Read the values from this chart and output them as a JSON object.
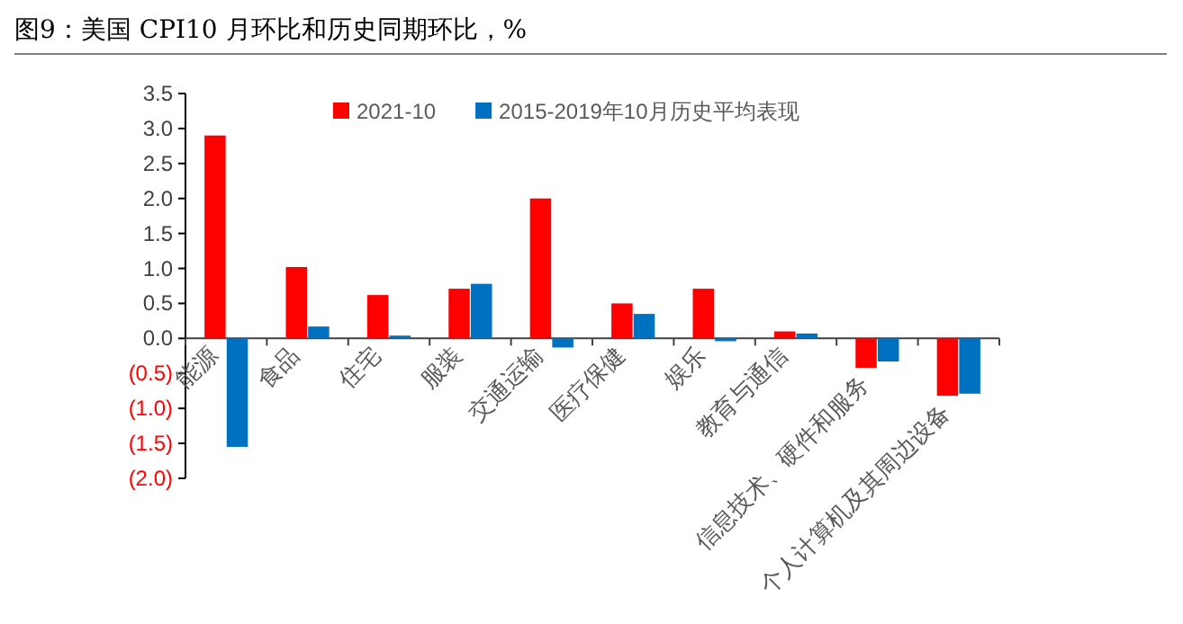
{
  "chart_data": {
    "type": "bar",
    "title": "图9：美国 CPI10 月环比和历史同期环比，%",
    "categories": [
      "能源",
      "食品",
      "住宅",
      "服装",
      "交通运输",
      "医疗保健",
      "娱乐",
      "教育与通信",
      "信息技术、硬件和服务",
      "个人计算机及其周边设备"
    ],
    "series": [
      {
        "name": "2021-10",
        "color": "#ff0000",
        "values": [
          2.9,
          1.02,
          0.62,
          0.71,
          2.0,
          0.5,
          0.71,
          0.1,
          -0.42,
          -0.82
        ]
      },
      {
        "name": "2015-2019年10月历史平均表现",
        "color": "#0070c0",
        "values": [
          -1.55,
          0.17,
          0.04,
          0.78,
          -0.13,
          0.35,
          -0.04,
          0.07,
          -0.33,
          -0.79
        ]
      }
    ],
    "ylim": [
      -2.0,
      3.5
    ],
    "yticks": [
      {
        "value": 3.5,
        "label": "3.5"
      },
      {
        "value": 3.0,
        "label": "3.0"
      },
      {
        "value": 2.5,
        "label": "2.5"
      },
      {
        "value": 2.0,
        "label": "2.0"
      },
      {
        "value": 1.5,
        "label": "1.5"
      },
      {
        "value": 1.0,
        "label": "1.0"
      },
      {
        "value": 0.5,
        "label": "0.5"
      },
      {
        "value": 0,
        "label": "0.0"
      },
      {
        "value": -0.5,
        "label": "(0.5)"
      },
      {
        "value": -1.0,
        "label": "(1.0)"
      },
      {
        "value": -1.5,
        "label": "(1.5)"
      },
      {
        "value": -2.0,
        "label": "(2.0)"
      }
    ],
    "grid": false,
    "legend": "top"
  }
}
